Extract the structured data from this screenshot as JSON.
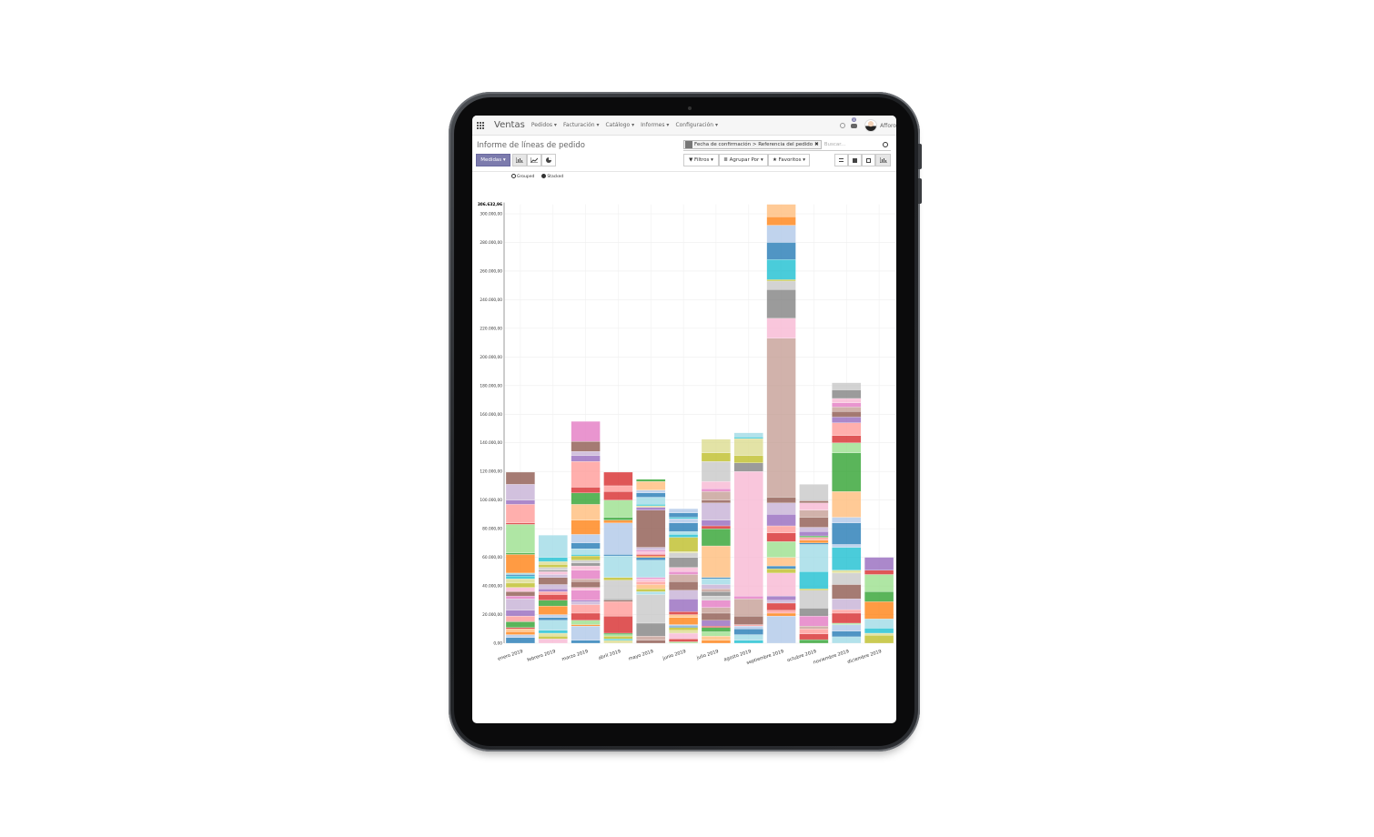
{
  "navbar": {
    "app": "Ventas",
    "menus": [
      "Pedidos ▾",
      "Facturación ▾",
      "Catálogo ▾",
      "Informes ▾",
      "Configuración ▾"
    ],
    "notification_count": "8",
    "user": "Afforo"
  },
  "page": {
    "title": "Informe de líneas de pedido"
  },
  "search": {
    "facet": "Fecha de confirmación > Referencia del pedido",
    "facet_remove": "✖",
    "placeholder": "Buscar..."
  },
  "toolbar": {
    "measures": "Medidas ▾",
    "filters": "▼ Filtros ▾",
    "group_by": "≣ Agrupar Por ▾",
    "favorites": "★ Favoritos ▾",
    "chart_types": [
      "bar-chart-icon",
      "line-chart-icon",
      "pie-chart-icon"
    ],
    "views": [
      "list-icon",
      "kanban-icon",
      "pivot-icon",
      "graph-icon"
    ],
    "active_view": "graph"
  },
  "modes": {
    "grouped": "Grouped",
    "stacked": "Stacked",
    "selected": "stacked"
  },
  "chart_data": {
    "type": "bar",
    "stacked": true,
    "grid": true,
    "title": "",
    "xlabel": "",
    "ylabel": "",
    "ylim": [
      0,
      306632.96
    ],
    "max_label": "306.632,96",
    "yticks": [
      "0,00",
      "20.000,00",
      "40.000,00",
      "60.000,00",
      "80.000,00",
      "100.000,00",
      "120.000,00",
      "140.000,00",
      "160.000,00",
      "180.000,00",
      "200.000,00",
      "220.000,00",
      "240.000,00",
      "260.000,00",
      "280.000,00",
      "300.000,00"
    ],
    "ytick_values": [
      0,
      20000,
      40000,
      60000,
      80000,
      100000,
      120000,
      140000,
      160000,
      180000,
      200000,
      220000,
      240000,
      260000,
      280000,
      300000
    ],
    "categories": [
      "enero 2019",
      "febrero 2019",
      "marzo 2019",
      "abril 2019",
      "mayo 2019",
      "junio 2019",
      "julio 2019",
      "agosto 2019",
      "septiembre 2019",
      "octubre 2019",
      "noviembre 2019",
      "diciembre 2019"
    ],
    "palette": [
      "#1f77b4",
      "#aec7e8",
      "#ff7f0e",
      "#ffbb78",
      "#2ca02c",
      "#98df8a",
      "#d62728",
      "#ff9896",
      "#9467bd",
      "#c5b0d5",
      "#8c564b",
      "#c49c94",
      "#e377c2",
      "#f7b6d2",
      "#7f7f7f",
      "#c7c7c7",
      "#bcbd22",
      "#dbdb8d",
      "#17becf",
      "#9edae5"
    ],
    "segments_unit": "thousands",
    "segments": [
      [
        [
          0,
          4
        ],
        [
          1,
          2
        ],
        [
          2,
          2
        ],
        [
          3,
          2
        ],
        [
          6,
          1
        ],
        [
          4,
          4
        ],
        [
          7,
          4
        ],
        [
          8,
          4
        ],
        [
          9,
          8
        ],
        [
          12,
          2
        ],
        [
          10,
          3
        ],
        [
          13,
          3
        ],
        [
          16,
          3
        ],
        [
          17,
          3
        ],
        [
          18,
          2
        ],
        [
          0,
          1
        ],
        [
          19,
          1
        ],
        [
          2,
          13
        ],
        [
          4,
          1
        ],
        [
          5,
          20
        ],
        [
          6,
          1
        ],
        [
          7,
          13
        ],
        [
          8,
          3
        ],
        [
          9,
          11
        ],
        [
          10,
          8.5
        ]
      ],
      [
        [
          13,
          3
        ],
        [
          16,
          2
        ],
        [
          17,
          2
        ],
        [
          18,
          2
        ],
        [
          19,
          7
        ],
        [
          0,
          2
        ],
        [
          1,
          2
        ],
        [
          2,
          6
        ],
        [
          4,
          4
        ],
        [
          6,
          4
        ],
        [
          7,
          2
        ],
        [
          8,
          2
        ],
        [
          9,
          3
        ],
        [
          10,
          5
        ],
        [
          9,
          2
        ],
        [
          13,
          2
        ],
        [
          14,
          1
        ],
        [
          15,
          2
        ],
        [
          16,
          2
        ],
        [
          17,
          2
        ],
        [
          18,
          3
        ],
        [
          19,
          15.5
        ]
      ],
      [
        [
          0,
          2
        ],
        [
          1,
          10
        ],
        [
          2,
          1
        ],
        [
          5,
          3
        ],
        [
          6,
          5
        ],
        [
          7,
          6
        ],
        [
          9,
          2
        ],
        [
          8,
          1
        ],
        [
          12,
          7
        ],
        [
          13,
          2
        ],
        [
          10,
          4
        ],
        [
          11,
          2
        ],
        [
          12,
          6
        ],
        [
          13,
          3
        ],
        [
          14,
          2
        ],
        [
          15,
          2
        ],
        [
          16,
          3
        ],
        [
          18,
          1
        ],
        [
          19,
          4
        ],
        [
          0,
          4
        ],
        [
          1,
          6
        ],
        [
          2,
          10
        ],
        [
          3,
          11
        ],
        [
          4,
          8
        ],
        [
          6,
          4
        ],
        [
          7,
          18
        ],
        [
          8,
          4
        ],
        [
          9,
          3
        ],
        [
          10,
          7
        ],
        [
          12,
          14
        ]
      ],
      [
        [
          17,
          2
        ],
        [
          18,
          1
        ],
        [
          16,
          2
        ],
        [
          5,
          1
        ],
        [
          4,
          1
        ],
        [
          6,
          12
        ],
        [
          7,
          10
        ],
        [
          10,
          1
        ],
        [
          14,
          1
        ],
        [
          15,
          13
        ],
        [
          16,
          2
        ],
        [
          19,
          15
        ],
        [
          0,
          1
        ],
        [
          1,
          22
        ],
        [
          2,
          2
        ],
        [
          4,
          2
        ],
        [
          5,
          12
        ],
        [
          6,
          6
        ],
        [
          7,
          4
        ],
        [
          6,
          9.5
        ]
      ],
      [
        [
          10,
          2
        ],
        [
          11,
          3
        ],
        [
          14,
          9
        ],
        [
          15,
          20
        ],
        [
          19,
          2
        ],
        [
          16,
          2
        ],
        [
          3,
          3
        ],
        [
          7,
          2
        ],
        [
          13,
          2
        ],
        [
          12,
          1
        ],
        [
          19,
          12
        ],
        [
          0,
          2
        ],
        [
          2,
          1
        ],
        [
          6,
          1
        ],
        [
          13,
          2
        ],
        [
          12,
          1
        ],
        [
          9,
          2
        ],
        [
          10,
          26
        ],
        [
          8,
          2
        ],
        [
          17,
          1
        ],
        [
          18,
          1
        ],
        [
          19,
          5
        ],
        [
          0,
          3
        ],
        [
          1,
          2
        ],
        [
          3,
          6
        ],
        [
          4,
          1.5
        ]
      ],
      [
        [
          5,
          1
        ],
        [
          6,
          2
        ],
        [
          13,
          4
        ],
        [
          17,
          2
        ],
        [
          16,
          2
        ],
        [
          0,
          1
        ],
        [
          1,
          1
        ],
        [
          2,
          5
        ],
        [
          3,
          2
        ],
        [
          6,
          2
        ],
        [
          8,
          9
        ],
        [
          9,
          6
        ],
        [
          10,
          6
        ],
        [
          11,
          5
        ],
        [
          12,
          2
        ],
        [
          13,
          3
        ],
        [
          14,
          7
        ],
        [
          15,
          3
        ],
        [
          17,
          1
        ],
        [
          16,
          10
        ],
        [
          18,
          2
        ],
        [
          19,
          2
        ],
        [
          0,
          6
        ],
        [
          1,
          3
        ],
        [
          18,
          1
        ],
        [
          0,
          3
        ],
        [
          1,
          3
        ]
      ],
      [
        [
          2,
          2
        ],
        [
          3,
          3
        ],
        [
          5,
          3
        ],
        [
          4,
          3
        ],
        [
          6,
          1
        ],
        [
          8,
          4
        ],
        [
          10,
          5
        ],
        [
          11,
          4
        ],
        [
          12,
          5
        ],
        [
          15,
          3
        ],
        [
          14,
          3
        ],
        [
          11,
          2
        ],
        [
          9,
          3
        ],
        [
          19,
          4
        ],
        [
          0,
          1
        ],
        [
          3,
          22
        ],
        [
          4,
          12
        ],
        [
          6,
          2
        ],
        [
          8,
          4
        ],
        [
          9,
          12
        ],
        [
          10,
          2
        ],
        [
          11,
          6
        ],
        [
          12,
          2
        ],
        [
          13,
          5
        ],
        [
          15,
          14
        ],
        [
          16,
          6
        ],
        [
          17,
          9.5
        ]
      ],
      [
        [
          18,
          2
        ],
        [
          19,
          4
        ],
        [
          0,
          4
        ],
        [
          1,
          2
        ],
        [
          7,
          1
        ],
        [
          10,
          6
        ],
        [
          11,
          12
        ],
        [
          12,
          2
        ],
        [
          13,
          87
        ],
        [
          14,
          6
        ],
        [
          16,
          5
        ],
        [
          17,
          12
        ],
        [
          18,
          1
        ],
        [
          19,
          3
        ]
      ],
      [
        [
          1,
          19
        ],
        [
          2,
          2
        ],
        [
          7,
          2
        ],
        [
          6,
          5
        ],
        [
          9,
          2
        ],
        [
          8,
          3
        ],
        [
          13,
          16
        ],
        [
          16,
          3
        ],
        [
          0,
          2
        ],
        [
          3,
          6
        ],
        [
          5,
          11
        ],
        [
          6,
          6
        ],
        [
          7,
          5
        ],
        [
          8,
          8
        ],
        [
          9,
          8
        ],
        [
          10,
          4
        ],
        [
          11,
          111
        ],
        [
          13,
          14
        ],
        [
          14,
          20
        ],
        [
          15,
          6
        ],
        [
          16,
          1
        ],
        [
          18,
          14
        ],
        [
          0,
          12
        ],
        [
          1,
          12
        ],
        [
          2,
          6
        ],
        [
          3,
          8.63
        ]
      ],
      [
        [
          4,
          2.5
        ],
        [
          6,
          4
        ],
        [
          7,
          3.5
        ],
        [
          11,
          2
        ],
        [
          12,
          7
        ],
        [
          14,
          5.5
        ],
        [
          15,
          12.5
        ],
        [
          16,
          1
        ],
        [
          18,
          12
        ],
        [
          19,
          19
        ],
        [
          0,
          1
        ],
        [
          2,
          2
        ],
        [
          7,
          2
        ],
        [
          4,
          1
        ],
        [
          8,
          3
        ],
        [
          9,
          3
        ],
        [
          10,
          7
        ],
        [
          11,
          5
        ],
        [
          13,
          5
        ],
        [
          10,
          1.5
        ],
        [
          15,
          11.5
        ]
      ],
      [
        [
          19,
          4.5
        ],
        [
          0,
          4
        ],
        [
          1,
          4.5
        ],
        [
          5,
          1
        ],
        [
          6,
          7
        ],
        [
          7,
          2.5
        ],
        [
          9,
          7.5
        ],
        [
          10,
          10
        ],
        [
          15,
          8
        ],
        [
          17,
          2
        ],
        [
          18,
          16
        ],
        [
          1,
          2
        ],
        [
          0,
          15
        ],
        [
          1,
          4
        ],
        [
          3,
          18
        ],
        [
          4,
          27
        ],
        [
          5,
          7
        ],
        [
          6,
          5
        ],
        [
          7,
          9
        ],
        [
          8,
          4
        ],
        [
          10,
          4
        ],
        [
          11,
          3
        ],
        [
          12,
          3
        ],
        [
          13,
          3
        ],
        [
          14,
          6
        ],
        [
          15,
          5
        ]
      ],
      [
        [
          16,
          5.5
        ],
        [
          17,
          1.5
        ],
        [
          18,
          3.5
        ],
        [
          19,
          6.5
        ],
        [
          2,
          12
        ],
        [
          4,
          7
        ],
        [
          5,
          12
        ],
        [
          6,
          3
        ],
        [
          8,
          9
        ]
      ]
    ]
  }
}
